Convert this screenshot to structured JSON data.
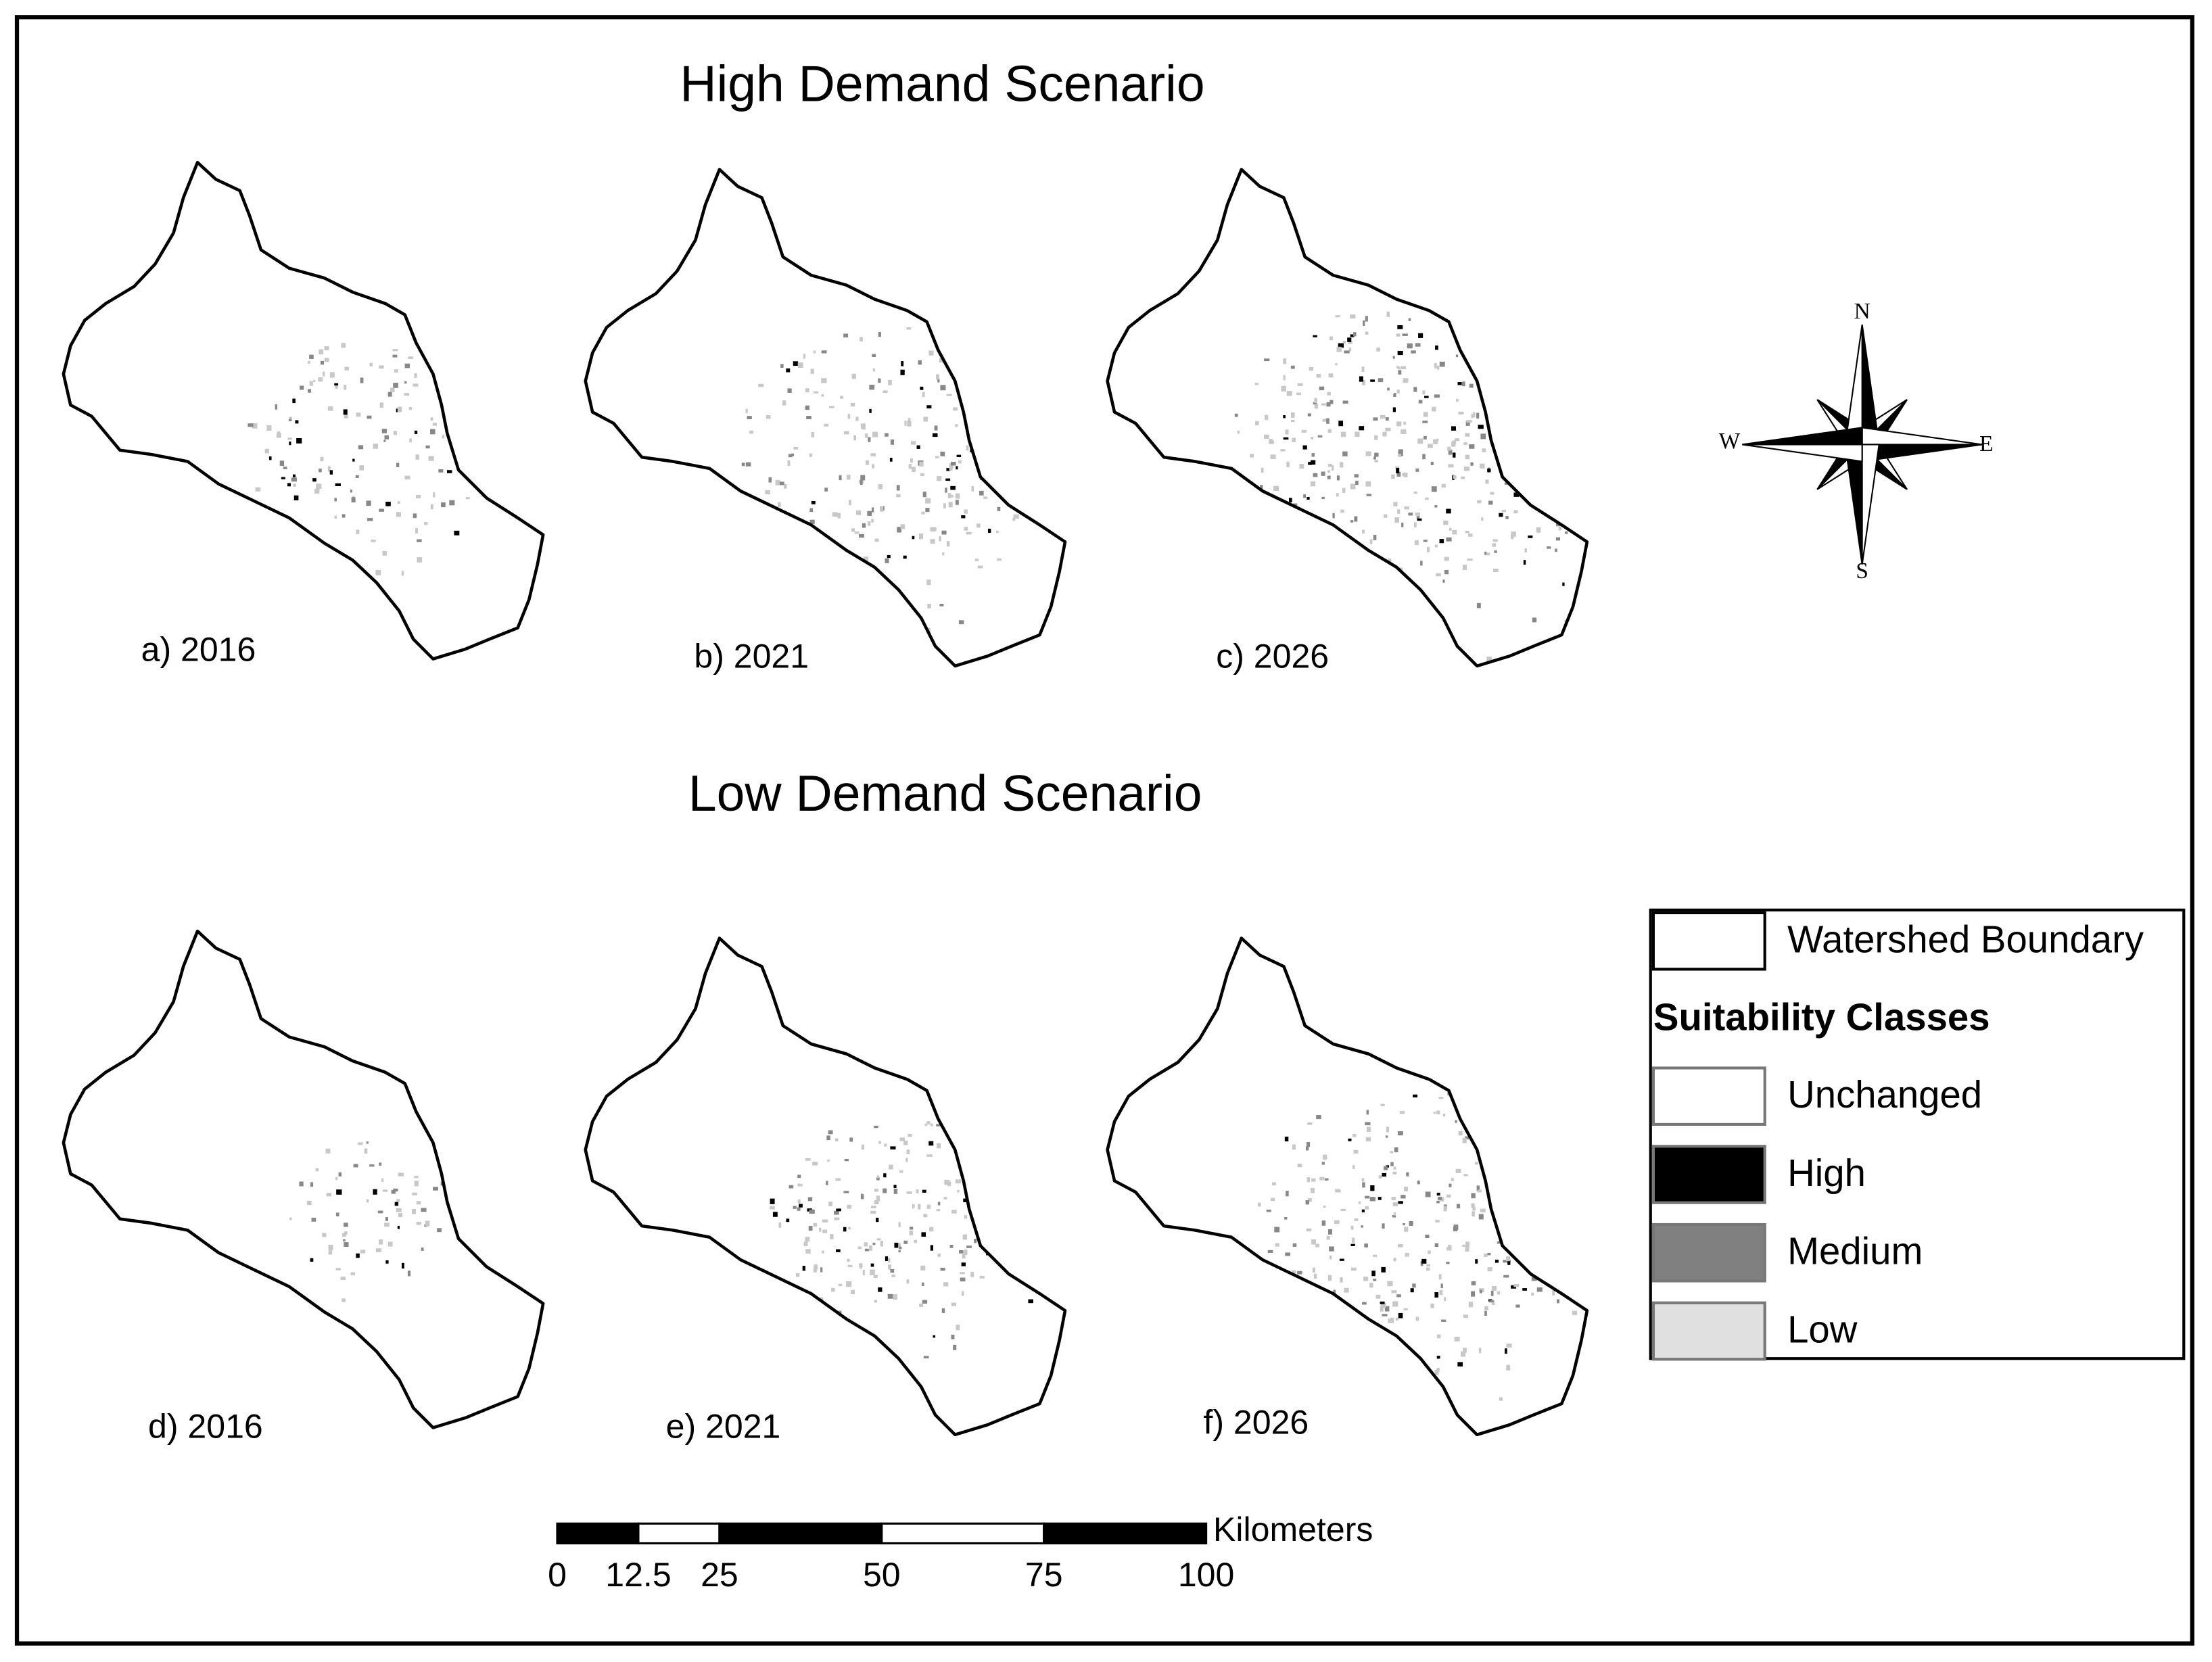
{
  "titles": {
    "high": "High Demand Scenario",
    "low": "Low Demand Scenario"
  },
  "panels": [
    "a) 2016",
    "b) 2021",
    "c) 2026",
    "d) 2016",
    "e) 2021",
    "f) 2026"
  ],
  "compass": {
    "n": "N",
    "e": "E",
    "s": "S",
    "w": "W"
  },
  "legend": {
    "boundary": "Watershed Boundary",
    "heading": "Suitability Classes",
    "classes": [
      {
        "label": "Unchanged",
        "color": "#ffffff"
      },
      {
        "label": "High",
        "color": "#000000"
      },
      {
        "label": "Medium",
        "color": "#808080"
      },
      {
        "label": "Low",
        "color": "#e0e0e0"
      }
    ]
  },
  "scale_bar": {
    "unit": "Kilometers",
    "ticks": [
      0,
      12.5,
      25,
      50,
      75,
      100
    ]
  }
}
